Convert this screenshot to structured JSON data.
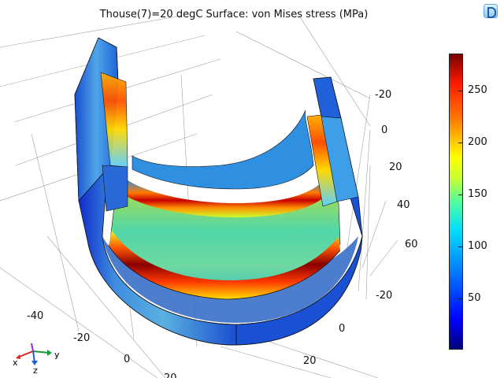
{
  "header": {
    "title": "Thouse(7)=20 degC   Surface: von Mises stress (MPa)"
  },
  "colorbar": {
    "labels": [
      "250",
      "200",
      "150",
      "100",
      "50"
    ],
    "values": [
      250,
      200,
      150,
      100,
      50
    ],
    "min": 5,
    "max": 283,
    "colormap": "rainbow"
  },
  "axes": {
    "left_ticks": [
      "-40",
      "-20",
      "0",
      "20"
    ],
    "right_ticks_upper": [
      "-20",
      "0",
      "20",
      "40",
      "60"
    ],
    "right_ticks_lower": [
      "-20",
      "0",
      "20"
    ]
  },
  "triad": {
    "x": "x",
    "y": "y",
    "z": "z"
  },
  "icons": {
    "app_logo": "comsol-logo-icon"
  }
}
